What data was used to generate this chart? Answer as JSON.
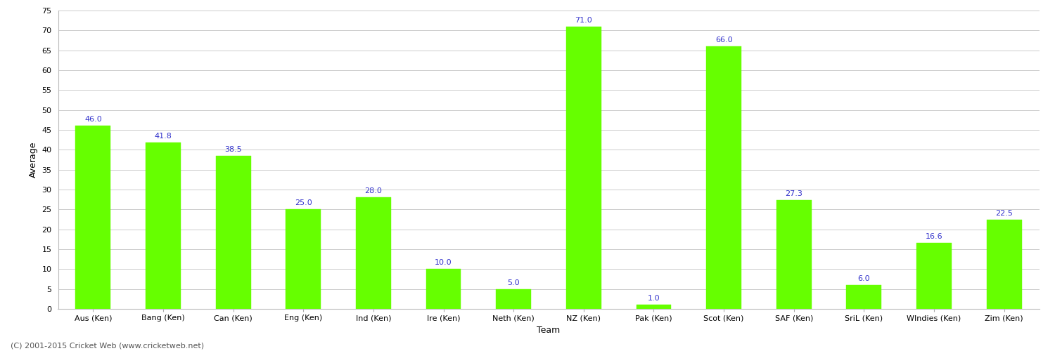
{
  "categories": [
    "Aus (Ken)",
    "Bang (Ken)",
    "Can (Ken)",
    "Eng (Ken)",
    "Ind (Ken)",
    "Ire (Ken)",
    "Neth (Ken)",
    "NZ (Ken)",
    "Pak (Ken)",
    "Scot (Ken)",
    "SAF (Ken)",
    "SriL (Ken)",
    "WIndies (Ken)",
    "Zim (Ken)"
  ],
  "values": [
    46.0,
    41.8,
    38.5,
    25.0,
    28.0,
    10.0,
    5.0,
    71.0,
    1.0,
    66.0,
    27.3,
    6.0,
    16.6,
    22.5
  ],
  "bar_color": "#66ff00",
  "bar_edge_color": "#66ff00",
  "xlabel": "Team",
  "ylabel": "Average",
  "ylim": [
    0,
    75
  ],
  "yticks": [
    0,
    5,
    10,
    15,
    20,
    25,
    30,
    35,
    40,
    45,
    50,
    55,
    60,
    65,
    70,
    75
  ],
  "label_color": "#3333cc",
  "label_fontsize": 8,
  "axis_label_fontsize": 9,
  "xlabel_fontsize": 9,
  "tick_fontsize": 8,
  "grid_color": "#cccccc",
  "background_color": "#ffffff",
  "footer_text": "(C) 2001-2015 Cricket Web (www.cricketweb.net)",
  "footer_fontsize": 8,
  "footer_color": "#555555",
  "bar_width": 0.5
}
